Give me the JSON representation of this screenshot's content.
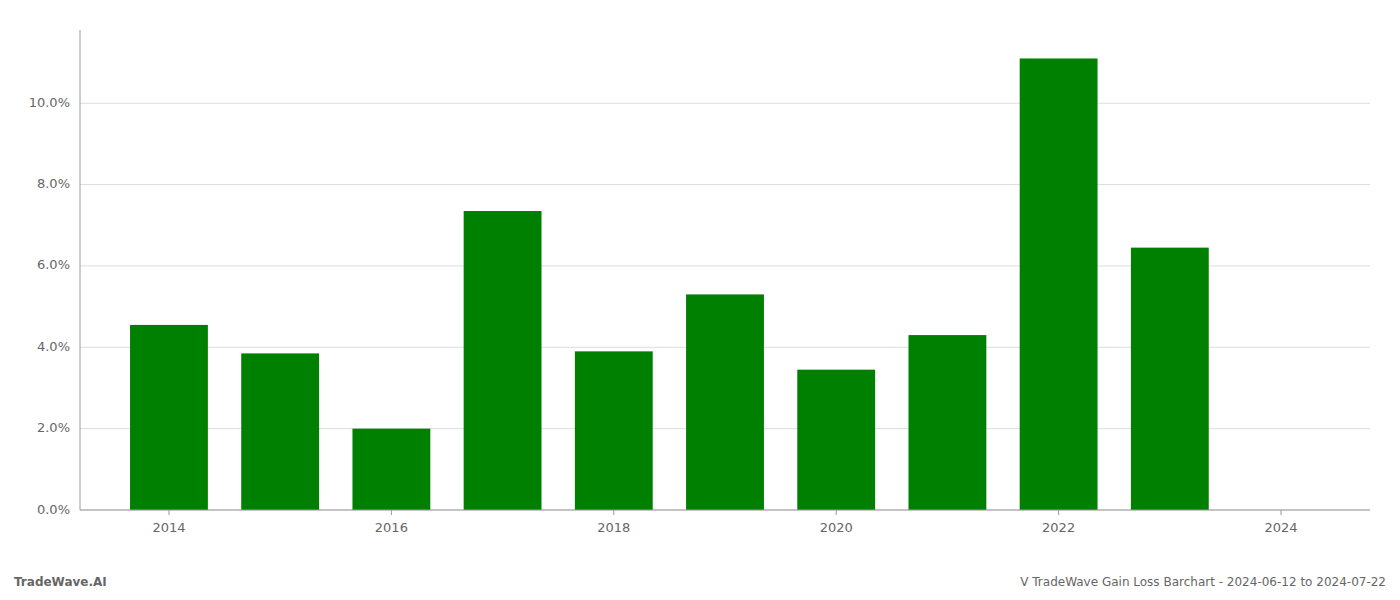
{
  "chart_data": {
    "type": "bar",
    "x": [
      2014,
      2015,
      2016,
      2017,
      2018,
      2019,
      2020,
      2021,
      2022,
      2023
    ],
    "values": [
      0.0455,
      0.0385,
      0.02,
      0.0735,
      0.039,
      0.053,
      0.0345,
      0.043,
      0.111,
      0.0645
    ],
    "color": "#008000",
    "xlim": [
      2013.2,
      2024.8
    ],
    "xticks": [
      2014,
      2016,
      2018,
      2020,
      2022,
      2024
    ],
    "ylim": [
      0,
      0.118
    ],
    "yticks": [
      {
        "value": 0.0,
        "label": "0.0%"
      },
      {
        "value": 0.02,
        "label": "2.0%"
      },
      {
        "value": 0.04,
        "label": "4.0%"
      },
      {
        "value": 0.06,
        "label": "6.0%"
      },
      {
        "value": 0.08,
        "label": "8.0%"
      },
      {
        "value": 0.1,
        "label": "10.0%"
      }
    ],
    "grid": true,
    "annotations": [
      "TradeWave.AI",
      "V TradeWave Gain Loss Barchart - 2024-06-12 to 2024-07-22"
    ]
  }
}
